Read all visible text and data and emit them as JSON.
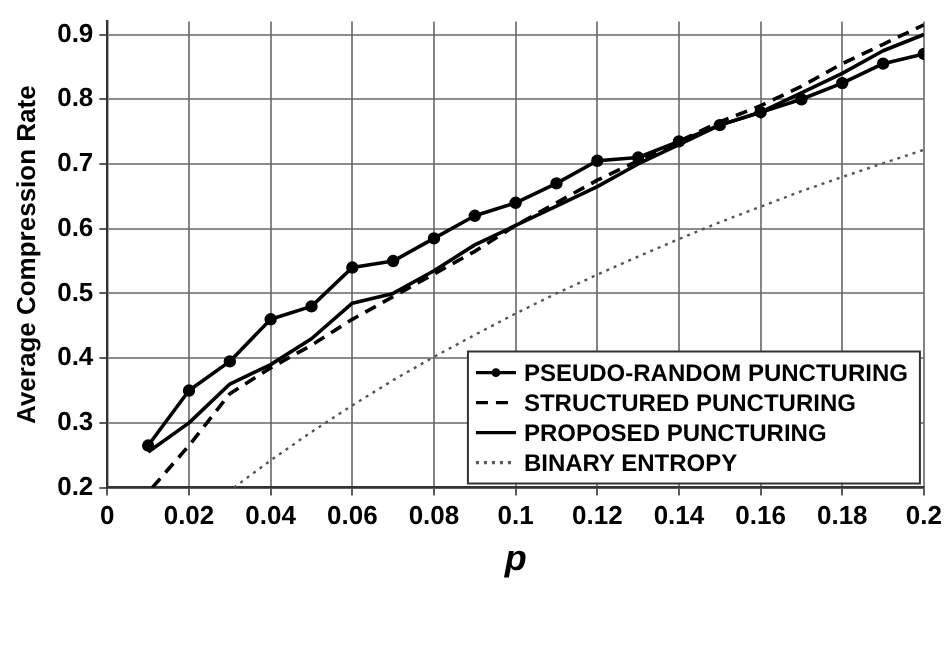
{
  "chart_data": {
    "type": "line",
    "xlabel": "p",
    "ylabel": "Average Compression Rate",
    "xlim": [
      0,
      0.2
    ],
    "xticks": [
      0,
      0.02,
      0.04,
      0.06,
      0.08,
      0.1,
      0.12,
      0.14,
      0.16,
      0.18,
      0.2
    ],
    "ylim": [
      0.2,
      0.92
    ],
    "yticks": [
      0.2,
      0.3,
      0.4,
      0.5,
      0.6,
      0.7,
      0.8,
      0.9
    ],
    "grid": true,
    "legend": "bottom right",
    "series": [
      {
        "name": "PSEUDO-RANDOM PUNCTURING",
        "color": "#000000",
        "marker": "circle",
        "line_style": "solid",
        "x": [
          0.01,
          0.02,
          0.03,
          0.04,
          0.05,
          0.06,
          0.07,
          0.08,
          0.09,
          0.1,
          0.11,
          0.12,
          0.13,
          0.14,
          0.15,
          0.16,
          0.17,
          0.18,
          0.19,
          0.2
        ],
        "values": [
          0.265,
          0.35,
          0.395,
          0.46,
          0.48,
          0.54,
          0.55,
          0.585,
          0.62,
          0.64,
          0.67,
          0.705,
          0.71,
          0.735,
          0.76,
          0.78,
          0.8,
          0.825,
          0.855,
          0.87
        ]
      },
      {
        "name": "STRUCTURED PUNCTURING",
        "color": "#000000",
        "marker": "none",
        "line_style": "dashed",
        "x": [
          0.011,
          0.02,
          0.03,
          0.04,
          0.05,
          0.06,
          0.07,
          0.08,
          0.09,
          0.1,
          0.11,
          0.12,
          0.13,
          0.14,
          0.15,
          0.16,
          0.17,
          0.18,
          0.19,
          0.2
        ],
        "values": [
          0.2,
          0.265,
          0.345,
          0.385,
          0.42,
          0.46,
          0.495,
          0.53,
          0.565,
          0.605,
          0.64,
          0.675,
          0.705,
          0.735,
          0.765,
          0.79,
          0.82,
          0.855,
          0.885,
          0.915
        ]
      },
      {
        "name": "PROPOSED PUNCTURING",
        "color": "#000000",
        "marker": "none",
        "line_style": "solid",
        "x": [
          0.01,
          0.02,
          0.03,
          0.04,
          0.05,
          0.06,
          0.07,
          0.08,
          0.09,
          0.1,
          0.11,
          0.12,
          0.13,
          0.14,
          0.15,
          0.16,
          0.17,
          0.18,
          0.19,
          0.2
        ],
        "values": [
          0.255,
          0.3,
          0.36,
          0.39,
          0.43,
          0.485,
          0.5,
          0.535,
          0.575,
          0.605,
          0.635,
          0.665,
          0.7,
          0.73,
          0.76,
          0.78,
          0.81,
          0.84,
          0.875,
          0.9
        ]
      },
      {
        "name": "BINARY ENTROPY",
        "color": "#555555",
        "marker": "none",
        "line_style": "dotted",
        "x": [
          0.031,
          0.04,
          0.05,
          0.06,
          0.07,
          0.08,
          0.09,
          0.1,
          0.11,
          0.12,
          0.13,
          0.14,
          0.15,
          0.16,
          0.17,
          0.18,
          0.19,
          0.2
        ],
        "values": [
          0.2,
          0.242,
          0.286,
          0.327,
          0.366,
          0.402,
          0.436,
          0.469,
          0.5,
          0.529,
          0.557,
          0.584,
          0.61,
          0.634,
          0.658,
          0.68,
          0.701,
          0.722
        ]
      }
    ]
  }
}
